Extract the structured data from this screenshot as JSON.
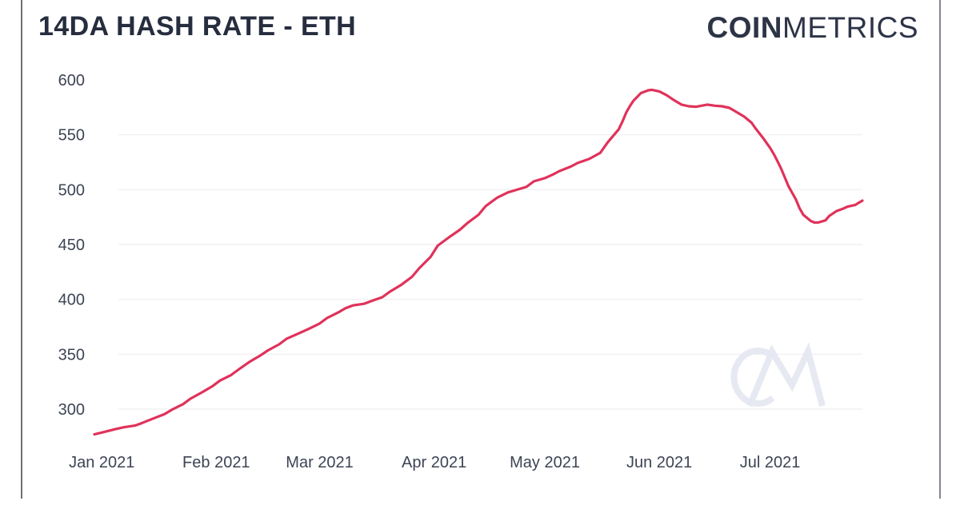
{
  "header": {
    "title": "14DA HASH RATE - ETH",
    "logo": {
      "bold": "COIN",
      "light": "METRICS"
    }
  },
  "colors": {
    "line": "#e0325a",
    "title_text": "#262d3e",
    "logo_text": "#2e3447",
    "axis_text": "#3d4454",
    "gridline": "#f1f1f4",
    "watermark": "#e7e9f2",
    "frame_border": "#85858e"
  },
  "chart_data": {
    "type": "line",
    "title": "14DA HASH RATE - ETH",
    "grid": "horizontal-only",
    "legend": "none",
    "y_axis": {
      "ticks": [
        300,
        350,
        400,
        450,
        500,
        550,
        600
      ],
      "gridline_ticks": [
        300,
        350,
        400,
        450,
        500,
        550
      ],
      "range": [
        300,
        600
      ]
    },
    "x_axis": {
      "ticks": [
        {
          "label": "Jan 2021",
          "date": "2021-01-01"
        },
        {
          "label": "Feb 2021",
          "date": "2021-02-01"
        },
        {
          "label": "Mar 2021",
          "date": "2021-03-01"
        },
        {
          "label": "Apr 2021",
          "date": "2021-04-01"
        },
        {
          "label": "May 2021",
          "date": "2021-05-01"
        },
        {
          "label": "Jun 2021",
          "date": "2021-06-01"
        },
        {
          "label": "Jul 2021",
          "date": "2021-07-01"
        }
      ]
    },
    "points": [
      [
        "2020-12-30",
        277
      ],
      [
        "2021-01-02",
        279.5
      ],
      [
        "2021-01-05",
        282
      ],
      [
        "2021-01-07",
        283.5
      ],
      [
        "2021-01-10",
        285
      ],
      [
        "2021-01-12",
        287.5
      ],
      [
        "2021-01-15",
        291.5
      ],
      [
        "2021-01-18",
        295.5
      ],
      [
        "2021-01-20",
        299.5
      ],
      [
        "2021-01-23",
        304.5
      ],
      [
        "2021-01-25",
        309.5
      ],
      [
        "2021-01-28",
        315
      ],
      [
        "2021-01-31",
        321
      ],
      [
        "2021-02-02",
        326
      ],
      [
        "2021-02-05",
        331
      ],
      [
        "2021-02-07",
        336
      ],
      [
        "2021-02-10",
        343
      ],
      [
        "2021-02-13",
        349
      ],
      [
        "2021-02-15",
        353.5
      ],
      [
        "2021-02-18",
        359
      ],
      [
        "2021-02-20",
        364
      ],
      [
        "2021-02-23",
        368.5
      ],
      [
        "2021-02-26",
        373
      ],
      [
        "2021-03-01",
        378
      ],
      [
        "2021-03-03",
        383
      ],
      [
        "2021-03-06",
        388
      ],
      [
        "2021-03-08",
        392
      ],
      [
        "2021-03-10",
        394.5
      ],
      [
        "2021-03-13",
        396
      ],
      [
        "2021-03-15",
        398.5
      ],
      [
        "2021-03-18",
        402
      ],
      [
        "2021-03-20",
        407
      ],
      [
        "2021-03-23",
        413
      ],
      [
        "2021-03-26",
        420.5
      ],
      [
        "2021-03-28",
        428.5
      ],
      [
        "2021-03-31",
        438.5
      ],
      [
        "2021-04-02",
        449
      ],
      [
        "2021-04-05",
        456.5
      ],
      [
        "2021-04-08",
        463.5
      ],
      [
        "2021-04-10",
        469.5
      ],
      [
        "2021-04-13",
        477
      ],
      [
        "2021-04-15",
        485
      ],
      [
        "2021-04-18",
        492.5
      ],
      [
        "2021-04-21",
        497.5
      ],
      [
        "2021-04-23",
        499.5
      ],
      [
        "2021-04-26",
        502.5
      ],
      [
        "2021-04-28",
        507.5
      ],
      [
        "2021-05-01",
        510.5
      ],
      [
        "2021-05-03",
        513.5
      ],
      [
        "2021-05-05",
        517
      ],
      [
        "2021-05-08",
        521
      ],
      [
        "2021-05-10",
        524.5
      ],
      [
        "2021-05-13",
        528
      ],
      [
        "2021-05-16",
        533.5
      ],
      [
        "2021-05-18",
        543
      ],
      [
        "2021-05-21",
        555
      ],
      [
        "2021-05-22",
        562
      ],
      [
        "2021-05-23",
        570
      ],
      [
        "2021-05-24",
        576
      ],
      [
        "2021-05-25",
        581
      ],
      [
        "2021-05-27",
        588
      ],
      [
        "2021-05-29",
        590.5
      ],
      [
        "2021-05-30",
        591
      ],
      [
        "2021-06-01",
        589.5
      ],
      [
        "2021-06-03",
        586
      ],
      [
        "2021-06-05",
        581.5
      ],
      [
        "2021-06-07",
        577.5
      ],
      [
        "2021-06-09",
        576
      ],
      [
        "2021-06-11",
        575.5
      ],
      [
        "2021-06-14",
        577.5
      ],
      [
        "2021-06-16",
        576.5
      ],
      [
        "2021-06-18",
        576
      ],
      [
        "2021-06-20",
        574.5
      ],
      [
        "2021-06-22",
        570.5
      ],
      [
        "2021-06-24",
        566.5
      ],
      [
        "2021-06-26",
        561
      ],
      [
        "2021-06-27",
        556
      ],
      [
        "2021-06-29",
        547.5
      ],
      [
        "2021-07-01",
        538
      ],
      [
        "2021-07-02",
        532.5
      ],
      [
        "2021-07-03",
        526
      ],
      [
        "2021-07-04",
        519
      ],
      [
        "2021-07-05",
        511
      ],
      [
        "2021-07-06",
        503
      ],
      [
        "2021-07-07",
        497
      ],
      [
        "2021-07-08",
        491
      ],
      [
        "2021-07-09",
        483
      ],
      [
        "2021-07-10",
        477
      ],
      [
        "2021-07-12",
        471.5
      ],
      [
        "2021-07-13",
        470
      ],
      [
        "2021-07-14",
        470
      ],
      [
        "2021-07-16",
        472
      ],
      [
        "2021-07-17",
        476
      ],
      [
        "2021-07-19",
        480.5
      ],
      [
        "2021-07-21",
        483
      ],
      [
        "2021-07-22",
        484.5
      ],
      [
        "2021-07-24",
        486
      ],
      [
        "2021-07-25",
        488
      ],
      [
        "2021-07-26",
        490
      ]
    ]
  }
}
